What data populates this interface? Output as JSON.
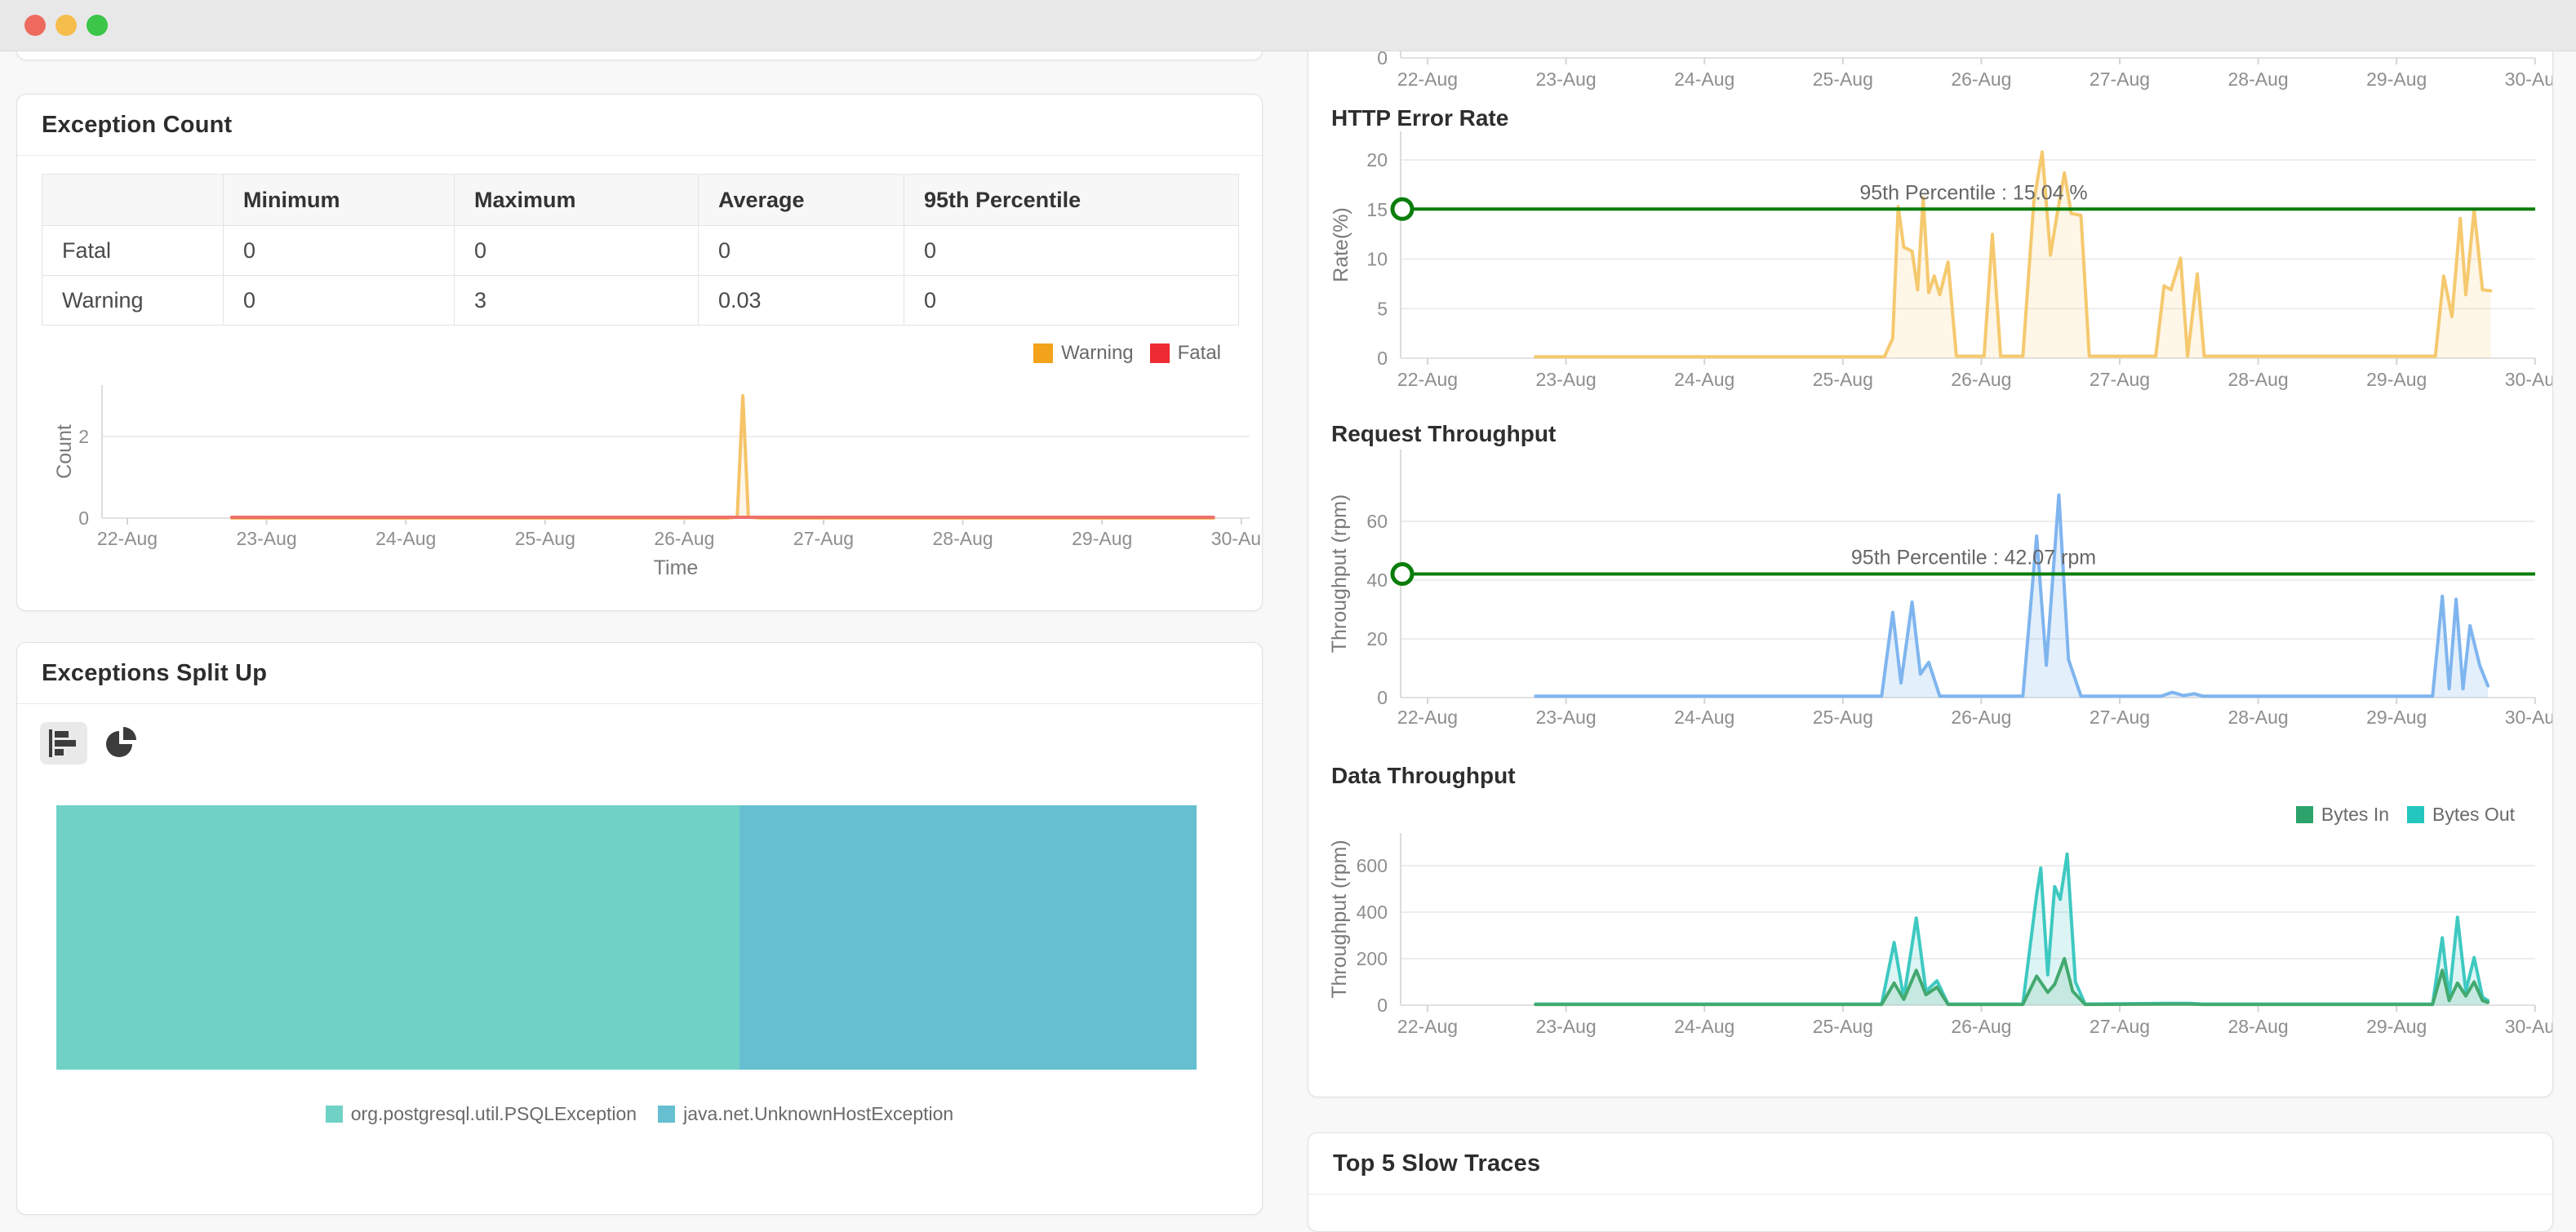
{
  "window": {
    "traffic_lights": [
      {
        "name": "close",
        "color": "#EE6A5F"
      },
      {
        "name": "minimize",
        "color": "#F5BD4C"
      },
      {
        "name": "zoom",
        "color": "#3BC549"
      }
    ]
  },
  "left": {
    "exception_count": {
      "title": "Exception Count",
      "table": {
        "headers": [
          "",
          "Minimum",
          "Maximum",
          "Average",
          "95th Percentile"
        ],
        "rows": [
          {
            "label": "Fatal",
            "values": [
              "0",
              "0",
              "0",
              "0"
            ]
          },
          {
            "label": "Warning",
            "values": [
              "0",
              "3",
              "0.03",
              "0"
            ]
          }
        ]
      },
      "legend": [
        {
          "label": "Warning",
          "color": "#F3A21B"
        },
        {
          "label": "Fatal",
          "color": "#EE2B33"
        }
      ]
    },
    "exceptions_split": {
      "title": "Exceptions Split Up",
      "toolbar": [
        {
          "name": "bar-chart-view",
          "selected": true
        },
        {
          "name": "pie-chart-view",
          "selected": false
        }
      ],
      "segments": [
        {
          "label": "org.postgresql.util.PSQLException",
          "color": "#70D2C6",
          "percent": 59.9
        },
        {
          "label": "java.net.UnknownHostException",
          "color": "#66BFD1",
          "percent": 40.1
        }
      ]
    }
  },
  "right": {
    "http_title": "HTTP Error Rate",
    "request_title": "Request Throughput",
    "data_title": "Data Throughput",
    "slow_traces_title": "Top 5 Slow Traces",
    "data_legend": [
      {
        "label": "Bytes In",
        "color": "#2BA36B"
      },
      {
        "label": "Bytes Out",
        "color": "#23C6BE"
      }
    ]
  },
  "chart_data": {
    "exception_count": {
      "type": "line",
      "title": "Exception Count",
      "x_categories": [
        "22-Aug",
        "23-Aug",
        "24-Aug",
        "25-Aug",
        "26-Aug",
        "27-Aug",
        "28-Aug",
        "29-Aug",
        "30-Aug"
      ],
      "x_range": [
        22,
        30
      ],
      "xlabel": "Time",
      "ylabel": "Count",
      "yticks": [
        0,
        2
      ],
      "ylim": [
        0,
        3.2
      ],
      "legend_position": "top-right",
      "series": [
        {
          "name": "Warning",
          "color": "#F5C368",
          "fill": "rgba(245,195,104,0.15)",
          "points": [
            [
              22.75,
              0
            ],
            [
              26.3,
              0
            ],
            [
              26.38,
              0.02
            ],
            [
              26.42,
              3
            ],
            [
              26.46,
              0.02
            ],
            [
              26.55,
              0
            ],
            [
              29.8,
              0
            ]
          ]
        },
        {
          "name": "Fatal",
          "color": "#F0706A",
          "points": [
            [
              22.75,
              0.02
            ],
            [
              29.8,
              0.02
            ]
          ]
        }
      ]
    },
    "top_axis_strip": {
      "type": "line",
      "title": "",
      "x_categories": [
        "22-Aug",
        "23-Aug",
        "24-Aug",
        "25-Aug",
        "26-Aug",
        "27-Aug",
        "28-Aug",
        "29-Aug",
        "30-Aug"
      ],
      "x_range": [
        22,
        30
      ],
      "yticks": [
        0
      ],
      "series": []
    },
    "http_error_rate": {
      "type": "area",
      "title": "HTTP Error Rate",
      "x_categories": [
        "22-Aug",
        "23-Aug",
        "24-Aug",
        "25-Aug",
        "26-Aug",
        "27-Aug",
        "28-Aug",
        "29-Aug",
        "30-Aug"
      ],
      "x_range": [
        22,
        30
      ],
      "ylabel": "Rate(%)",
      "yticks": [
        0,
        5,
        10,
        15,
        20
      ],
      "ylim": [
        0,
        22
      ],
      "percentile": {
        "value": 15.04,
        "label": "95th Percentile : 15.04 %",
        "color": "#0A7D0A"
      },
      "series": [
        {
          "name": "Error Rate",
          "color": "#F5C96F",
          "fill": "rgba(247,205,114,0.18)",
          "points": [
            [
              22.78,
              0.15
            ],
            [
              24.5,
              0.15
            ],
            [
              25.3,
              0.15
            ],
            [
              25.36,
              2
            ],
            [
              25.4,
              15.3
            ],
            [
              25.44,
              11.2
            ],
            [
              25.5,
              10.8
            ],
            [
              25.54,
              6.9
            ],
            [
              25.58,
              16.2
            ],
            [
              25.62,
              6.6
            ],
            [
              25.66,
              8.3
            ],
            [
              25.7,
              6.4
            ],
            [
              25.76,
              9.7
            ],
            [
              25.82,
              0.2
            ],
            [
              26.02,
              0.2
            ],
            [
              26.08,
              12.5
            ],
            [
              26.14,
              0.2
            ],
            [
              26.3,
              0.2
            ],
            [
              26.38,
              15.8
            ],
            [
              26.44,
              20.8
            ],
            [
              26.5,
              10.4
            ],
            [
              26.54,
              13.9
            ],
            [
              26.6,
              18.7
            ],
            [
              26.65,
              14.6
            ],
            [
              26.72,
              14.4
            ],
            [
              26.78,
              0.2
            ],
            [
              27.26,
              0.2
            ],
            [
              27.32,
              7.3
            ],
            [
              27.37,
              6.9
            ],
            [
              27.44,
              10.1
            ],
            [
              27.49,
              0.2
            ],
            [
              27.56,
              8.5
            ],
            [
              27.61,
              0.2
            ],
            [
              28.5,
              0.2
            ],
            [
              29.28,
              0.2
            ],
            [
              29.34,
              8.3
            ],
            [
              29.4,
              4.2
            ],
            [
              29.46,
              14.1
            ],
            [
              29.5,
              6.4
            ],
            [
              29.56,
              15.0
            ],
            [
              29.62,
              6.9
            ],
            [
              29.68,
              6.8
            ]
          ]
        }
      ]
    },
    "request_throughput": {
      "type": "area",
      "title": "Request Throughput",
      "x_categories": [
        "22-Aug",
        "23-Aug",
        "24-Aug",
        "25-Aug",
        "26-Aug",
        "27-Aug",
        "28-Aug",
        "29-Aug",
        "30-Aug"
      ],
      "x_range": [
        22,
        30
      ],
      "ylabel": "Throughput (rpm)",
      "yticks": [
        0,
        20,
        40,
        60
      ],
      "ylim": [
        0,
        75
      ],
      "percentile": {
        "value": 42.07,
        "label": "95th Percentile : 42.07 rpm",
        "color": "#0A7D0A"
      },
      "series": [
        {
          "name": "Throughput",
          "color": "#7FB5EF",
          "fill": "rgba(127,181,239,0.22)",
          "points": [
            [
              22.78,
              0.5
            ],
            [
              25.28,
              0.5
            ],
            [
              25.36,
              29
            ],
            [
              25.42,
              5
            ],
            [
              25.5,
              32.5
            ],
            [
              25.56,
              8
            ],
            [
              25.62,
              12
            ],
            [
              25.7,
              0.5
            ],
            [
              26.3,
              0.5
            ],
            [
              26.4,
              55
            ],
            [
              26.47,
              11
            ],
            [
              26.56,
              69
            ],
            [
              26.63,
              13
            ],
            [
              26.72,
              0.5
            ],
            [
              27.3,
              0.5
            ],
            [
              27.38,
              1.8
            ],
            [
              27.46,
              0.7
            ],
            [
              27.54,
              1.3
            ],
            [
              27.6,
              0.5
            ],
            [
              28.8,
              0.5
            ],
            [
              29.26,
              0.5
            ],
            [
              29.33,
              34.5
            ],
            [
              29.38,
              3
            ],
            [
              29.43,
              33.5
            ],
            [
              29.48,
              3
            ],
            [
              29.53,
              24.5
            ],
            [
              29.6,
              11
            ],
            [
              29.66,
              4
            ]
          ]
        }
      ]
    },
    "data_throughput": {
      "type": "area",
      "title": "Data Throughput",
      "x_categories": [
        "22-Aug",
        "23-Aug",
        "24-Aug",
        "25-Aug",
        "26-Aug",
        "27-Aug",
        "28-Aug",
        "29-Aug",
        "30-Aug"
      ],
      "x_range": [
        22,
        30
      ],
      "ylabel": "Throughput (rpm)",
      "yticks": [
        0,
        200,
        400,
        600
      ],
      "ylim": [
        0,
        700
      ],
      "legend_position": "top-right",
      "series": [
        {
          "name": "Bytes Out",
          "color": "#3EC9C1",
          "fill": "rgba(62,201,193,0.18)",
          "points": [
            [
              22.78,
              5
            ],
            [
              25.28,
              5
            ],
            [
              25.37,
              270
            ],
            [
              25.44,
              30
            ],
            [
              25.53,
              375
            ],
            [
              25.6,
              60
            ],
            [
              25.68,
              105
            ],
            [
              25.76,
              5
            ],
            [
              26.3,
              5
            ],
            [
              26.4,
              475
            ],
            [
              26.43,
              590
            ],
            [
              26.48,
              130
            ],
            [
              26.53,
              510
            ],
            [
              26.57,
              455
            ],
            [
              26.62,
              650
            ],
            [
              26.68,
              100
            ],
            [
              26.75,
              5
            ],
            [
              27.35,
              8
            ],
            [
              27.5,
              8
            ],
            [
              27.6,
              5
            ],
            [
              29.26,
              5
            ],
            [
              29.33,
              290
            ],
            [
              29.38,
              30
            ],
            [
              29.44,
              378
            ],
            [
              29.5,
              60
            ],
            [
              29.56,
              205
            ],
            [
              29.62,
              35
            ],
            [
              29.66,
              20
            ]
          ]
        },
        {
          "name": "Bytes In",
          "color": "#43A96F",
          "fill": "rgba(67,169,111,0.15)",
          "points": [
            [
              22.78,
              3
            ],
            [
              25.28,
              3
            ],
            [
              25.37,
              95
            ],
            [
              25.44,
              25
            ],
            [
              25.53,
              150
            ],
            [
              25.6,
              45
            ],
            [
              25.68,
              78
            ],
            [
              25.76,
              3
            ],
            [
              26.3,
              3
            ],
            [
              26.4,
              125
            ],
            [
              26.48,
              55
            ],
            [
              26.53,
              90
            ],
            [
              26.6,
              200
            ],
            [
              26.66,
              60
            ],
            [
              26.75,
              3
            ],
            [
              27.35,
              5
            ],
            [
              27.5,
              5
            ],
            [
              27.6,
              3
            ],
            [
              29.26,
              3
            ],
            [
              29.33,
              150
            ],
            [
              29.38,
              20
            ],
            [
              29.44,
              95
            ],
            [
              29.5,
              40
            ],
            [
              29.56,
              100
            ],
            [
              29.62,
              20
            ],
            [
              29.66,
              12
            ]
          ]
        }
      ]
    }
  }
}
